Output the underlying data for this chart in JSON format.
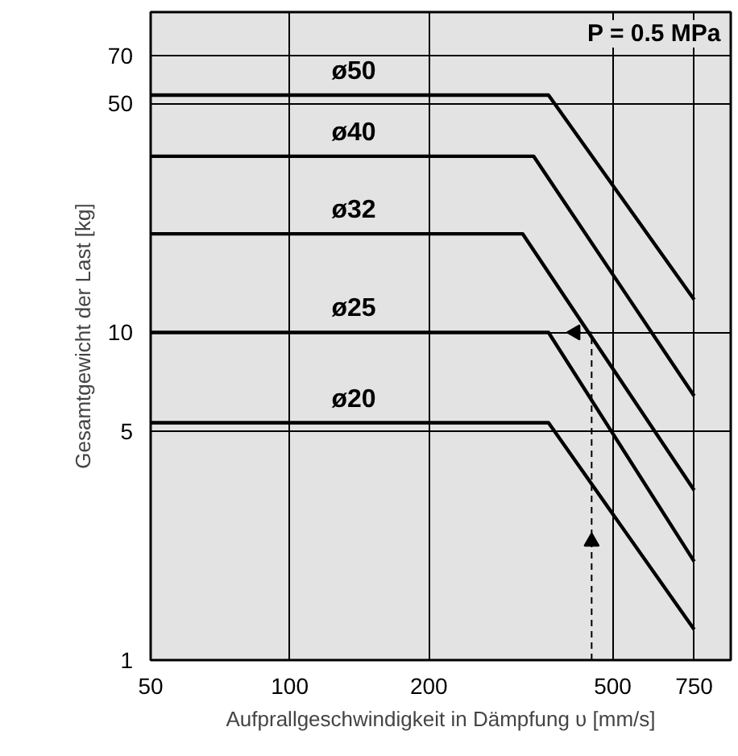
{
  "chart_data": {
    "type": "line",
    "xlabel": "Aufprallgeschwindigkeit in Dämpfung υ [mm/s]",
    "ylabel": "Gesamtgewicht der Last [kg]",
    "log": "xy",
    "xlim": [
      50,
      900
    ],
    "ylim": [
      1,
      95
    ],
    "xticks": [
      50,
      100,
      200,
      500,
      750
    ],
    "yticks": [
      1,
      5,
      10,
      50,
      70
    ],
    "grid": true,
    "marker": "none",
    "line_style": "solid",
    "series": [
      {
        "name": "ø50",
        "color": "#000000",
        "x": [
          50,
          363,
          750
        ],
        "values": [
          53,
          53,
          12.6
        ]
      },
      {
        "name": "ø40",
        "color": "#000000",
        "x": [
          50,
          337,
          750
        ],
        "values": [
          34.5,
          34.5,
          6.4
        ]
      },
      {
        "name": "ø32",
        "color": "#000000",
        "x": [
          50,
          319,
          750
        ],
        "values": [
          20,
          20,
          3.3
        ]
      },
      {
        "name": "ø25",
        "color": "#000000",
        "x": [
          50,
          363,
          750
        ],
        "values": [
          10,
          10,
          2.0
        ]
      },
      {
        "name": "ø20",
        "color": "#000000",
        "x": [
          50,
          363,
          750
        ],
        "values": [
          5.3,
          5.3,
          1.24
        ]
      },
      {
        "color": "#000000",
        "line_style": "dashed",
        "marker": "triangle",
        "x": [
          450,
          450,
          450,
          415
        ],
        "values": [
          1,
          2.3,
          10,
          10
        ]
      }
    ],
    "annotations": [
      "P = 0.5 MPa"
    ]
  }
}
